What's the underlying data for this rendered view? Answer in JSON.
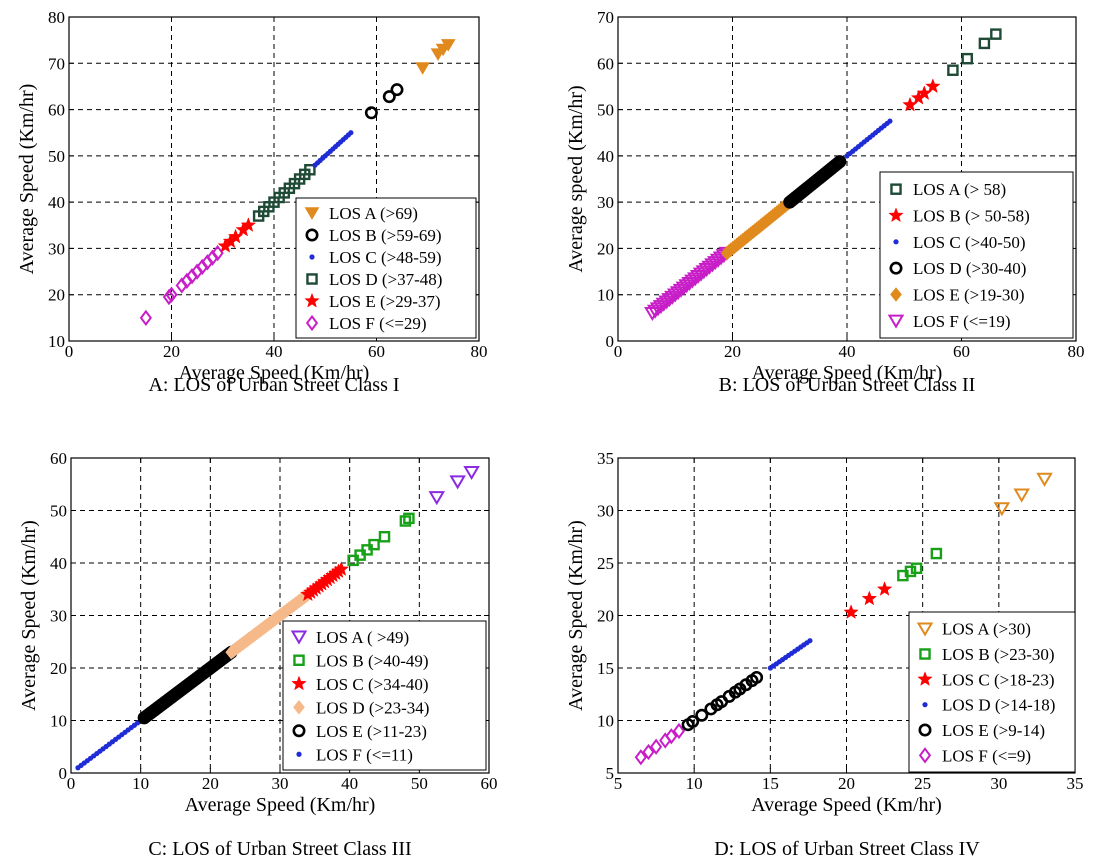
{
  "figure": {
    "panels": [
      {
        "caption": "A: LOS of Urban Street Class I"
      },
      {
        "caption": "B: LOS of Urban Street Class II"
      },
      {
        "caption": "C: LOS of Urban Street Class III"
      },
      {
        "caption": "D: LOS of Urban Street Class IV"
      }
    ]
  },
  "chart_data": [
    {
      "type": "scatter",
      "title": "",
      "caption": "A: LOS of Urban Street Class I",
      "xlabel": "Average Speed (Km/hr)",
      "ylabel": "Average Speed (Km/hr)",
      "xlim": [
        0,
        80
      ],
      "ylim": [
        10,
        80
      ],
      "xticks": [
        0,
        20,
        40,
        60,
        80
      ],
      "yticks": [
        10,
        20,
        30,
        40,
        50,
        60,
        70,
        80
      ],
      "grid": true,
      "legend_position": "bottom-right",
      "series": [
        {
          "name": "LOS A (>69)",
          "marker": "triangle-down",
          "color": "#e08a1e",
          "filled": true,
          "points": [
            [
              69,
              69
            ],
            [
              72,
              72
            ],
            [
              73,
              73
            ],
            [
              74,
              74
            ]
          ]
        },
        {
          "name": "LOS B (>59-69)",
          "marker": "circle-open",
          "color": "#000000",
          "filled": false,
          "points": [
            [
              59,
              59.3
            ],
            [
              62.5,
              62.8
            ],
            [
              64,
              64.3
            ]
          ]
        },
        {
          "name": "LOS C (>48-59)",
          "marker": "dot",
          "color": "#1f2cd6",
          "filled": true,
          "dense": {
            "from": 48,
            "to": 55,
            "step": 0.5
          }
        },
        {
          "name": "LOS D (>37-48)",
          "marker": "square-open",
          "color": "#1f4a36",
          "filled": false,
          "dense": {
            "from": 37,
            "to": 47.5,
            "step": 1.0
          }
        },
        {
          "name": "LOS E (>29-37)",
          "marker": "star",
          "color": "#ff0000",
          "filled": true,
          "points": [
            [
              30.5,
              30.5
            ],
            [
              31.5,
              31.5
            ],
            [
              32.5,
              32.5
            ],
            [
              34,
              34
            ],
            [
              35,
              35
            ]
          ]
        },
        {
          "name": "LOS F (<=29)",
          "marker": "diamond-open",
          "color": "#c81ec8",
          "filled": false,
          "points": [
            [
              15,
              15
            ],
            [
              19.5,
              19.5
            ],
            [
              20,
              20
            ],
            [
              22,
              22
            ],
            [
              23,
              23
            ],
            [
              24,
              24
            ],
            [
              25,
              25
            ],
            [
              26,
              26
            ],
            [
              27,
              27
            ],
            [
              28,
              28
            ],
            [
              29,
              29
            ]
          ]
        }
      ]
    },
    {
      "type": "scatter",
      "title": "",
      "caption": "B: LOS of Urban Street Class II",
      "xlabel": "Average Speed (Km/hr)",
      "ylabel": "Average speed (Km/hr)",
      "xlim": [
        0,
        80
      ],
      "ylim": [
        0,
        70
      ],
      "xticks": [
        0,
        20,
        40,
        60,
        80
      ],
      "yticks": [
        0,
        10,
        20,
        30,
        40,
        50,
        60,
        70
      ],
      "grid": true,
      "legend_position": "bottom-right",
      "series": [
        {
          "name": "LOS A (> 58)",
          "marker": "square-open",
          "color": "#1f4a36",
          "filled": false,
          "points": [
            [
              58.5,
              58.5
            ],
            [
              61,
              61
            ],
            [
              64,
              64.3
            ],
            [
              66,
              66.3
            ]
          ]
        },
        {
          "name": "LOS B (> 50-58)",
          "marker": "star",
          "color": "#ff0000",
          "filled": true,
          "points": [
            [
              51,
              51
            ],
            [
              52.5,
              52.5
            ],
            [
              53.5,
              53.5
            ],
            [
              55,
              55
            ]
          ]
        },
        {
          "name": "LOS C (>40-50)",
          "marker": "dot",
          "color": "#1f2cd6",
          "filled": true,
          "dense": {
            "from": 40,
            "to": 47.5,
            "step": 0.5
          }
        },
        {
          "name": "LOS D (>30-40)",
          "marker": "circle-open",
          "color": "#000000",
          "filled": false,
          "dense": {
            "from": 30,
            "to": 39,
            "step": 0.35
          }
        },
        {
          "name": "LOS E (>19-30)",
          "marker": "diamond-filled",
          "color": "#e08a1e",
          "filled": true,
          "dense": {
            "from": 19,
            "to": 30,
            "step": 0.35
          }
        },
        {
          "name": "LOS F (<=19)",
          "marker": "triangle-down",
          "color": "#c81ec8",
          "filled": false,
          "dense": {
            "from": 6,
            "to": 19,
            "step": 0.5
          }
        }
      ]
    },
    {
      "type": "scatter",
      "title": "",
      "caption": "C: LOS of Urban Street Class III",
      "xlabel": "Average Speed (Km/hr)",
      "ylabel": "Average Speed (Km/hr)",
      "xlim": [
        0,
        60
      ],
      "ylim": [
        0,
        60
      ],
      "xticks": [
        0,
        10,
        20,
        30,
        40,
        50,
        60
      ],
      "yticks": [
        0,
        10,
        20,
        30,
        40,
        50,
        60
      ],
      "grid": true,
      "legend_position": "bottom-right",
      "series": [
        {
          "name": "LOS A ( >49)",
          "marker": "triangle-down",
          "color": "#8a2be2",
          "filled": false,
          "points": [
            [
              52.5,
              52.5
            ],
            [
              55.5,
              55.5
            ],
            [
              57.5,
              57.3
            ]
          ]
        },
        {
          "name": "LOS B (>40-49)",
          "marker": "square-open",
          "color": "#18a018",
          "filled": false,
          "points": [
            [
              40.5,
              40.5
            ],
            [
              41.5,
              41.5
            ],
            [
              42.5,
              42.5
            ],
            [
              43.5,
              43.5
            ],
            [
              45,
              45
            ],
            [
              48,
              48
            ],
            [
              48.5,
              48.5
            ]
          ]
        },
        {
          "name": "LOS C (>34-40)",
          "marker": "star",
          "color": "#ff0000",
          "filled": true,
          "dense": {
            "from": 34,
            "to": 39,
            "step": 0.4
          }
        },
        {
          "name": "LOS D (>23-34)",
          "marker": "diamond-filled",
          "color": "#f5b98a",
          "filled": true,
          "dense": {
            "from": 23,
            "to": 34,
            "step": 0.25
          }
        },
        {
          "name": "LOS E (>11-23)",
          "marker": "circle-open",
          "color": "#000000",
          "filled": false,
          "dense": {
            "from": 10.5,
            "to": 23,
            "step": 0.25
          }
        },
        {
          "name": "LOS F (<=11)",
          "marker": "dot",
          "color": "#1f2cd6",
          "filled": true,
          "dense": {
            "from": 1,
            "to": 10.5,
            "step": 0.45
          }
        }
      ]
    },
    {
      "type": "scatter",
      "title": "",
      "caption": "D: LOS of Urban Street Class IV",
      "xlabel": "Average Speed (Km/hr)",
      "ylabel": "Average Speed (Km/hr)",
      "xlim": [
        5,
        35
      ],
      "ylim": [
        5,
        35
      ],
      "xticks": [
        5,
        10,
        15,
        20,
        25,
        30,
        35
      ],
      "yticks": [
        5,
        10,
        15,
        20,
        25,
        30,
        35
      ],
      "grid": true,
      "legend_position": "bottom-right",
      "series": [
        {
          "name": "LOS A (>30)",
          "marker": "triangle-down",
          "color": "#e08a1e",
          "filled": false,
          "points": [
            [
              30.2,
              30.2
            ],
            [
              31.5,
              31.5
            ],
            [
              33,
              33
            ]
          ]
        },
        {
          "name": "LOS B (>23-30)",
          "marker": "square-open",
          "color": "#18a018",
          "filled": false,
          "points": [
            [
              23.7,
              23.8
            ],
            [
              24.2,
              24.2
            ],
            [
              24.6,
              24.5
            ],
            [
              25.9,
              25.9
            ]
          ]
        },
        {
          "name": "LOS C (>18-23)",
          "marker": "star",
          "color": "#ff0000",
          "filled": true,
          "points": [
            [
              20.3,
              20.3
            ],
            [
              21.5,
              21.6
            ],
            [
              22.5,
              22.5
            ]
          ]
        },
        {
          "name": "LOS D (>14-18)",
          "marker": "dot",
          "color": "#1f2cd6",
          "filled": true,
          "dense": {
            "from": 15,
            "to": 17.6,
            "step": 0.2
          }
        },
        {
          "name": "LOS E (>9-14)",
          "marker": "circle-open",
          "color": "#000000",
          "filled": false,
          "points": [
            [
              9.6,
              9.6
            ],
            [
              9.9,
              9.9
            ],
            [
              10.5,
              10.5
            ],
            [
              11.1,
              11.1
            ],
            [
              11.5,
              11.5
            ],
            [
              11.8,
              11.8
            ],
            [
              12.3,
              12.3
            ],
            [
              12.7,
              12.7
            ],
            [
              13.0,
              13.0
            ],
            [
              13.4,
              13.4
            ],
            [
              13.8,
              13.8
            ],
            [
              14.1,
              14.1
            ]
          ]
        },
        {
          "name": "LOS F (<=9)",
          "marker": "diamond-open",
          "color": "#c81ec8",
          "filled": false,
          "points": [
            [
              6.5,
              6.5
            ],
            [
              7.0,
              7.0
            ],
            [
              7.5,
              7.5
            ],
            [
              8.1,
              8.1
            ],
            [
              8.5,
              8.5
            ],
            [
              9.0,
              9.0
            ]
          ]
        }
      ]
    }
  ]
}
